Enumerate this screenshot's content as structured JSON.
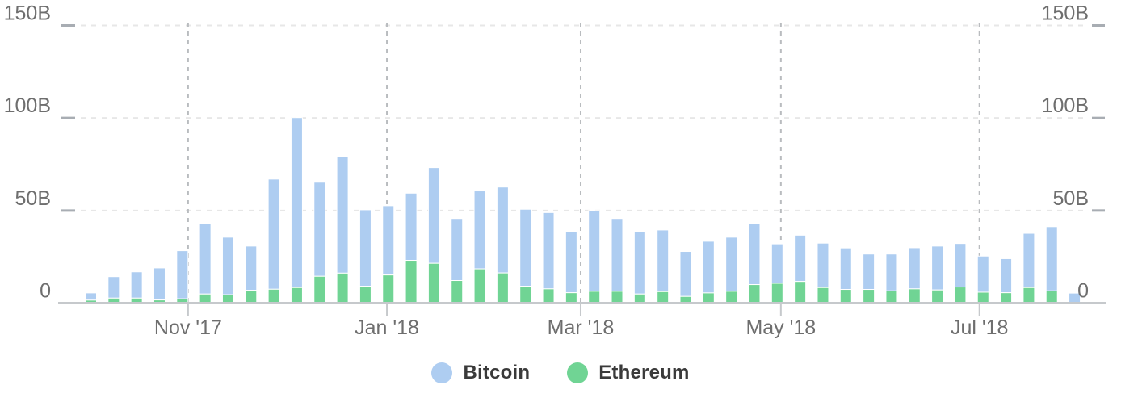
{
  "chart_data": {
    "type": "bar",
    "stacked": true,
    "x_unit": "week",
    "x": [
      "2017-10-01",
      "2017-10-08",
      "2017-10-15",
      "2017-10-22",
      "2017-10-29",
      "2017-11-05",
      "2017-11-12",
      "2017-11-19",
      "2017-11-26",
      "2017-12-03",
      "2017-12-10",
      "2017-12-17",
      "2017-12-24",
      "2017-12-31",
      "2018-01-07",
      "2018-01-14",
      "2018-01-21",
      "2018-01-28",
      "2018-02-04",
      "2018-02-11",
      "2018-02-18",
      "2018-02-25",
      "2018-03-04",
      "2018-03-11",
      "2018-03-18",
      "2018-03-25",
      "2018-04-01",
      "2018-04-08",
      "2018-04-15",
      "2018-04-22",
      "2018-04-29",
      "2018-05-06",
      "2018-05-13",
      "2018-05-20",
      "2018-05-27",
      "2018-06-03",
      "2018-06-10",
      "2018-06-17",
      "2018-06-24",
      "2018-07-01",
      "2018-07-08",
      "2018-07-15",
      "2018-07-22",
      "2018-07-29"
    ],
    "series": [
      {
        "name": "Bitcoin",
        "color": "#AECDF1",
        "values": [
          3.9,
          11.6,
          14.2,
          17.3,
          26.0,
          38.1,
          31.1,
          23.9,
          59.5,
          91.8,
          50.8,
          63.0,
          41.3,
          37.4,
          36.3,
          51.7,
          33.5,
          42.1,
          46.4,
          41.6,
          41.2,
          32.9,
          43.6,
          39.3,
          33.6,
          33.3,
          24.3,
          27.9,
          29.2,
          32.8,
          21.3,
          25.0,
          24.0,
          22.4,
          19.1,
          19.9,
          22.2,
          23.7,
          23.5,
          19.5,
          18.4,
          29.3,
          34.7,
          5.0
        ]
      },
      {
        "name": "Ethereum",
        "color": "#70D494",
        "values": [
          1.6,
          2.7,
          2.7,
          1.7,
          2.3,
          4.9,
          4.5,
          6.9,
          7.5,
          8.4,
          14.5,
          16.2,
          9.1,
          15.2,
          23.1,
          21.5,
          12.2,
          18.5,
          16.3,
          9.1,
          7.7,
          5.6,
          6.4,
          6.4,
          4.9,
          6.2,
          3.6,
          5.5,
          6.4,
          10.0,
          10.7,
          11.7,
          8.4,
          7.4,
          7.4,
          6.6,
          7.7,
          7.1,
          8.7,
          5.9,
          5.6,
          8.4,
          6.6,
          0.4
        ]
      }
    ],
    "stack_bottom_series": "Ethereum",
    "value_unit": "B",
    "y_axis": {
      "min": 0,
      "max": 150,
      "tick_values": [
        0,
        50,
        100,
        150
      ],
      "tick_labels": [
        "0",
        "50B",
        "100B",
        "150B"
      ],
      "sides": [
        "left",
        "right"
      ]
    },
    "x_axis": {
      "tick_labels": [
        {
          "label": "Nov '17",
          "week_index": 4.25
        },
        {
          "label": "Jan '18",
          "week_index": 12.94
        },
        {
          "label": "Mar '18",
          "week_index": 21.41
        },
        {
          "label": "May '18",
          "week_index": 30.16
        },
        {
          "label": "Jul '18",
          "week_index": 38.84
        }
      ]
    },
    "legend": {
      "position": "bottom",
      "items": [
        {
          "label": "Bitcoin",
          "color": "#AECDF1"
        },
        {
          "label": "Ethereum",
          "color": "#70D494"
        }
      ]
    },
    "grid": {
      "horizontal": "dashed",
      "vertical": "dashed-at-month-ticks"
    },
    "style_colors": {
      "axis_text": "#6E6E6E",
      "legend_text": "#3A3A3A",
      "grid_horizontal": "#E7E7E7",
      "grid_vertical": "#B9BCBF",
      "axis_line": "#C6C9CC",
      "tick_mark": "#A8ADB3",
      "background": "#FFFFFF"
    }
  }
}
